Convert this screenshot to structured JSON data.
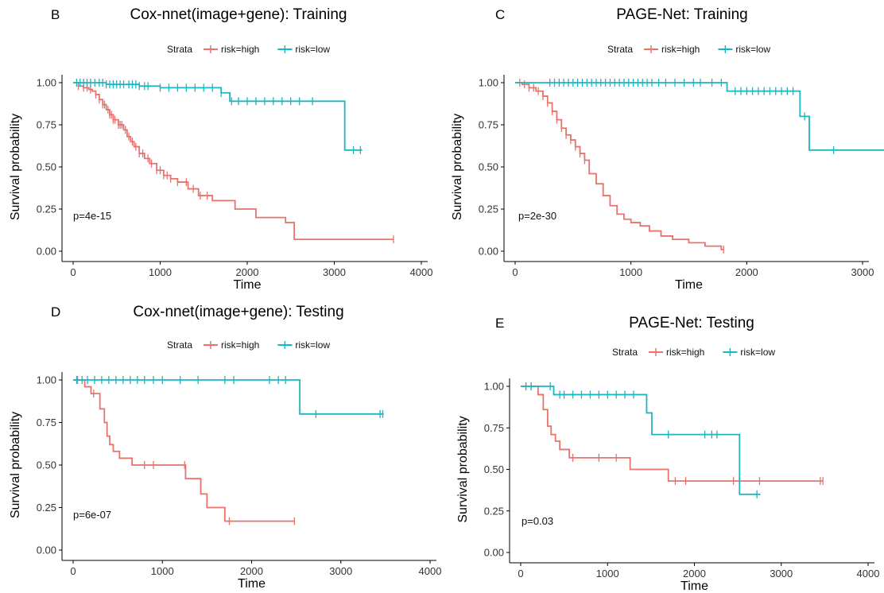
{
  "colors": {
    "high": "#E8736C",
    "low": "#1FB5BF",
    "axis": "#000000"
  },
  "chart_data": [
    {
      "type": "line",
      "panel": "B",
      "title": "Cox-nnet(image+gene): Training",
      "xlabel": "Time",
      "ylabel": "Survival probability",
      "xlim": [
        0,
        4000
      ],
      "ylim": [
        0,
        1
      ],
      "xticks": [
        "0",
        "1000",
        "2000",
        "3000",
        "4000"
      ],
      "yticks": [
        "0.00",
        "0.25",
        "0.50",
        "0.75",
        "1.00"
      ],
      "legend": {
        "title": "Strata",
        "position": "top",
        "entries": [
          "risk=high",
          "risk=low"
        ]
      },
      "pvalue": "p=4e-15",
      "grid": false,
      "series": [
        {
          "name": "risk=high",
          "x": [
            0,
            60,
            120,
            180,
            220,
            260,
            300,
            340,
            380,
            420,
            460,
            520,
            580,
            620,
            660,
            700,
            760,
            820,
            880,
            960,
            1040,
            1120,
            1200,
            1320,
            1440,
            1600,
            1860,
            2100,
            2440,
            2540,
            3680
          ],
          "y": [
            1.0,
            0.98,
            0.97,
            0.96,
            0.95,
            0.93,
            0.9,
            0.87,
            0.84,
            0.81,
            0.78,
            0.75,
            0.72,
            0.68,
            0.65,
            0.62,
            0.58,
            0.55,
            0.52,
            0.48,
            0.45,
            0.43,
            0.41,
            0.37,
            0.33,
            0.3,
            0.25,
            0.2,
            0.17,
            0.07,
            0.07
          ],
          "censor": [
            60,
            120,
            160,
            200,
            260,
            300,
            340,
            360,
            400,
            420,
            440,
            460,
            480,
            520,
            540,
            560,
            600,
            640,
            680,
            720,
            760,
            800,
            860,
            900,
            960,
            1000,
            1040,
            1080,
            1120,
            1200,
            1300,
            1380,
            1460,
            1540,
            3680
          ]
        },
        {
          "name": "risk=low",
          "x": [
            0,
            380,
            760,
            1000,
            1700,
            1800,
            3120,
            3320
          ],
          "y": [
            1.0,
            0.99,
            0.98,
            0.97,
            0.94,
            0.89,
            0.6,
            0.6
          ],
          "censor": [
            40,
            80,
            120,
            160,
            200,
            250,
            300,
            340,
            380,
            420,
            460,
            500,
            540,
            580,
            640,
            680,
            720,
            760,
            820,
            860,
            1000,
            1100,
            1200,
            1300,
            1400,
            1500,
            1600,
            1700,
            1820,
            1900,
            2000,
            2100,
            2200,
            2300,
            2400,
            2500,
            2600,
            2750,
            3220,
            3300
          ]
        }
      ]
    },
    {
      "type": "line",
      "panel": "C",
      "title": "PAGE-Net: Training",
      "xlabel": "Time",
      "ylabel": "Survival probability",
      "xlim": [
        0,
        3000
      ],
      "ylim": [
        0,
        1
      ],
      "xticks": [
        "0",
        "1000",
        "2000",
        "3000"
      ],
      "yticks": [
        "0.00",
        "0.25",
        "0.50",
        "0.75",
        "1.00"
      ],
      "legend": {
        "title": "Strata",
        "position": "top",
        "entries": [
          "risk=high",
          "risk=low"
        ]
      },
      "pvalue": "p=2e-30",
      "grid": false,
      "series": [
        {
          "name": "risk=high",
          "x": [
            0,
            60,
            120,
            180,
            240,
            280,
            320,
            360,
            400,
            440,
            480,
            520,
            560,
            600,
            640,
            700,
            760,
            820,
            880,
            940,
            1000,
            1080,
            1160,
            1260,
            1360,
            1500,
            1640,
            1780,
            1800
          ],
          "y": [
            1.0,
            0.99,
            0.97,
            0.95,
            0.92,
            0.88,
            0.83,
            0.78,
            0.73,
            0.69,
            0.66,
            0.62,
            0.58,
            0.54,
            0.46,
            0.4,
            0.33,
            0.27,
            0.22,
            0.19,
            0.17,
            0.15,
            0.12,
            0.09,
            0.07,
            0.05,
            0.03,
            0.01,
            0.01
          ],
          "censor": [
            40,
            80,
            120,
            160,
            200,
            240,
            280,
            320,
            360,
            400,
            440,
            480,
            520,
            560,
            600,
            1800
          ]
        },
        {
          "name": "risk=low",
          "x": [
            0,
            1830,
            2460,
            2540,
            3200
          ],
          "y": [
            1.0,
            0.95,
            0.8,
            0.6,
            0.6
          ],
          "censor": [
            300,
            340,
            380,
            420,
            460,
            500,
            540,
            580,
            620,
            660,
            700,
            740,
            780,
            820,
            860,
            900,
            940,
            980,
            1020,
            1060,
            1100,
            1140,
            1180,
            1240,
            1300,
            1380,
            1460,
            1540,
            1600,
            1700,
            1780,
            1900,
            1950,
            2000,
            2050,
            2100,
            2150,
            2200,
            2250,
            2300,
            2350,
            2400,
            2500,
            2750
          ]
        }
      ]
    },
    {
      "type": "line",
      "panel": "D",
      "title": "Cox-nnet(image+gene): Testing",
      "xlabel": "Time",
      "ylabel": "Survival probability",
      "xlim": [
        0,
        4000
      ],
      "ylim": [
        0,
        1
      ],
      "xticks": [
        "0",
        "1000",
        "2000",
        "3000",
        "4000"
      ],
      "yticks": [
        "0.00",
        "0.25",
        "0.50",
        "0.75",
        "1.00"
      ],
      "legend": {
        "title": "Strata",
        "position": "top",
        "entries": [
          "risk=high",
          "risk=low"
        ]
      },
      "pvalue": "p=6e-07",
      "grid": false,
      "series": [
        {
          "name": "risk=high",
          "x": [
            0,
            130,
            200,
            300,
            350,
            380,
            410,
            450,
            520,
            660,
            1260,
            1430,
            1500,
            1700,
            2480
          ],
          "y": [
            1.0,
            0.96,
            0.92,
            0.83,
            0.75,
            0.67,
            0.62,
            0.58,
            0.54,
            0.5,
            0.42,
            0.33,
            0.25,
            0.17,
            0.17
          ],
          "censor": [
            50,
            230,
            800,
            900,
            1250,
            1750,
            2480
          ]
        },
        {
          "name": "risk=low",
          "x": [
            0,
            2540,
            3480
          ],
          "y": [
            1.0,
            0.8,
            0.8
          ],
          "censor": [
            40,
            100,
            160,
            240,
            320,
            400,
            480,
            560,
            640,
            720,
            800,
            900,
            1000,
            1200,
            1400,
            1700,
            1800,
            2200,
            2300,
            2380,
            2720,
            3440,
            3470
          ]
        }
      ]
    },
    {
      "type": "line",
      "panel": "E",
      "title": "PAGE-Net: Testing",
      "xlabel": "Time",
      "ylabel": "Survival probability",
      "xlim": [
        0,
        4000
      ],
      "ylim": [
        0,
        1
      ],
      "xticks": [
        "0",
        "1000",
        "2000",
        "3000",
        "4000"
      ],
      "yticks": [
        "0.00",
        "0.25",
        "0.50",
        "0.75",
        "1.00"
      ],
      "legend": {
        "title": "Strata",
        "position": "top",
        "entries": [
          "risk=high",
          "risk=low"
        ]
      },
      "pvalue": "p=0.03",
      "grid": false,
      "series": [
        {
          "name": "risk=high",
          "x": [
            0,
            200,
            260,
            310,
            350,
            400,
            450,
            560,
            1260,
            1700,
            3480
          ],
          "y": [
            1.0,
            0.95,
            0.86,
            0.76,
            0.71,
            0.67,
            0.62,
            0.57,
            0.5,
            0.43,
            0.43
          ],
          "censor": [
            60,
            120,
            600,
            900,
            1100,
            1780,
            1900,
            2450,
            2750,
            3450,
            3480
          ]
        },
        {
          "name": "risk=low",
          "x": [
            0,
            380,
            1450,
            1510,
            2520,
            2760
          ],
          "y": [
            1.0,
            0.95,
            0.84,
            0.71,
            0.35,
            0.35
          ],
          "censor": [
            60,
            120,
            340,
            450,
            500,
            600,
            700,
            800,
            900,
            1000,
            1100,
            1200,
            1300,
            1700,
            2120,
            2200,
            2260,
            2720
          ]
        }
      ]
    }
  ]
}
